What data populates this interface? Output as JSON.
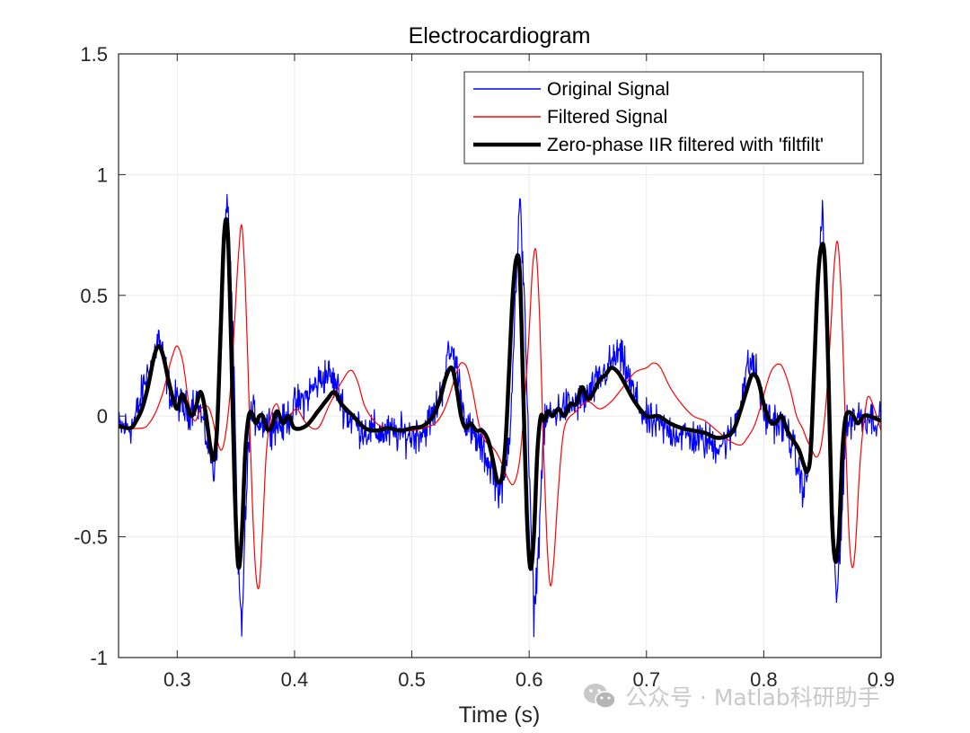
{
  "chart_data": {
    "type": "line",
    "title": "Electrocardiogram",
    "xlabel": "Time (s)",
    "ylabel": "",
    "xlim": [
      0.25,
      0.9
    ],
    "ylim": [
      -1,
      1.5
    ],
    "x_ticks": [
      0.3,
      0.4,
      0.5,
      0.6,
      0.7,
      0.8,
      0.9
    ],
    "x_tick_labels": [
      "0.3",
      "0.4",
      "0.5",
      "0.6",
      "0.7",
      "0.8",
      "0.9"
    ],
    "y_ticks": [
      -1,
      -0.5,
      0,
      0.5,
      1,
      1.5
    ],
    "y_tick_labels": [
      "-1",
      "-0.5",
      "0",
      "0.5",
      "1",
      "1.5"
    ],
    "grid": true,
    "legend_position": "top-right",
    "series": [
      {
        "name": "Original Signal",
        "color": "#0000ff",
        "line_style": "thin",
        "noise_amplitude": 0.055,
        "x": [
          0.25,
          0.262,
          0.268,
          0.272,
          0.276,
          0.28,
          0.284,
          0.288,
          0.292,
          0.296,
          0.3,
          0.305,
          0.31,
          0.316,
          0.32,
          0.324,
          0.328,
          0.331,
          0.334,
          0.337,
          0.34,
          0.343,
          0.346,
          0.349,
          0.352,
          0.355,
          0.358,
          0.362,
          0.366,
          0.37,
          0.38,
          0.39,
          0.4,
          0.41,
          0.42,
          0.428,
          0.436,
          0.445,
          0.46,
          0.48,
          0.5,
          0.51,
          0.52,
          0.526,
          0.53,
          0.534,
          0.538,
          0.544,
          0.55,
          0.558,
          0.564,
          0.569,
          0.574,
          0.579,
          0.584,
          0.588,
          0.592,
          0.596,
          0.6,
          0.604,
          0.608,
          0.612,
          0.616,
          0.62,
          0.63,
          0.64,
          0.65,
          0.66,
          0.67,
          0.676,
          0.682,
          0.69,
          0.7,
          0.71,
          0.72,
          0.74,
          0.76,
          0.77,
          0.775,
          0.78,
          0.785,
          0.79,
          0.795,
          0.8,
          0.81,
          0.82,
          0.825,
          0.83,
          0.834,
          0.838,
          0.842,
          0.846,
          0.85,
          0.854,
          0.858,
          0.862,
          0.866,
          0.87,
          0.875,
          0.88,
          0.89,
          0.9
        ],
        "y": [
          -0.05,
          -0.04,
          0.05,
          0.14,
          0.19,
          0.24,
          0.33,
          0.24,
          0.14,
          0.06,
          0.07,
          0.03,
          0.02,
          0.08,
          0.01,
          -0.07,
          -0.15,
          -0.24,
          -0.1,
          0.25,
          0.65,
          0.92,
          0.55,
          0.05,
          -0.65,
          -0.88,
          -0.45,
          0.0,
          0.0,
          -0.02,
          -0.03,
          -0.04,
          0.04,
          0.08,
          0.14,
          0.18,
          0.12,
          0.0,
          -0.06,
          -0.07,
          -0.08,
          -0.06,
          0.02,
          0.12,
          0.23,
          0.27,
          0.21,
          0.02,
          -0.07,
          -0.12,
          -0.18,
          -0.23,
          -0.3,
          -0.28,
          -0.02,
          0.45,
          0.88,
          0.52,
          -0.25,
          -0.82,
          -0.55,
          -0.08,
          0.0,
          0.01,
          0.04,
          0.05,
          0.08,
          0.15,
          0.22,
          0.26,
          0.2,
          0.08,
          -0.02,
          -0.04,
          -0.06,
          -0.09,
          -0.12,
          -0.1,
          -0.04,
          0.06,
          0.18,
          0.23,
          0.15,
          0.0,
          -0.02,
          -0.06,
          -0.13,
          -0.24,
          -0.3,
          -0.22,
          0.12,
          0.55,
          0.86,
          0.45,
          -0.35,
          -0.78,
          -0.45,
          -0.06,
          0.0,
          0.0,
          0.0,
          -0.02
        ]
      },
      {
        "name": "Filtered Signal",
        "color": "#ff0000",
        "line_style": "thin",
        "x": [
          0.25,
          0.27,
          0.276,
          0.282,
          0.288,
          0.292,
          0.296,
          0.3,
          0.305,
          0.31,
          0.315,
          0.32,
          0.326,
          0.33,
          0.334,
          0.338,
          0.342,
          0.346,
          0.349,
          0.352,
          0.355,
          0.358,
          0.361,
          0.364,
          0.367,
          0.37,
          0.373,
          0.376,
          0.38,
          0.385,
          0.39,
          0.396,
          0.402,
          0.41,
          0.42,
          0.43,
          0.44,
          0.448,
          0.454,
          0.46,
          0.47,
          0.48,
          0.49,
          0.5,
          0.51,
          0.52,
          0.527,
          0.533,
          0.538,
          0.542,
          0.547,
          0.552,
          0.557,
          0.562,
          0.567,
          0.572,
          0.577,
          0.582,
          0.587,
          0.592,
          0.596,
          0.6,
          0.603,
          0.606,
          0.609,
          0.612,
          0.615,
          0.618,
          0.621,
          0.625,
          0.63,
          0.64,
          0.65,
          0.66,
          0.67,
          0.68,
          0.69,
          0.7,
          0.706,
          0.712,
          0.72,
          0.73,
          0.74,
          0.75,
          0.76,
          0.77,
          0.78,
          0.786,
          0.792,
          0.798,
          0.803,
          0.808,
          0.815,
          0.822,
          0.828,
          0.833,
          0.837,
          0.841,
          0.845,
          0.849,
          0.853,
          0.857,
          0.86,
          0.863,
          0.866,
          0.869,
          0.872,
          0.875,
          0.878,
          0.882,
          0.886,
          0.89,
          0.9
        ],
        "y": [
          -0.05,
          -0.05,
          -0.03,
          0.02,
          0.1,
          0.18,
          0.25,
          0.29,
          0.22,
          0.05,
          -0.02,
          0.03,
          0.04,
          -0.01,
          -0.1,
          -0.14,
          -0.05,
          0.15,
          0.4,
          0.65,
          0.79,
          0.55,
          0.1,
          -0.35,
          -0.65,
          -0.7,
          -0.45,
          -0.15,
          0.0,
          0.05,
          -0.02,
          0.0,
          0.03,
          -0.03,
          -0.05,
          0.05,
          0.14,
          0.19,
          0.14,
          0.04,
          -0.03,
          -0.05,
          -0.06,
          -0.06,
          -0.05,
          -0.03,
          0.02,
          0.1,
          0.18,
          0.22,
          0.2,
          0.1,
          -0.03,
          -0.1,
          -0.12,
          -0.15,
          -0.2,
          -0.26,
          -0.28,
          -0.18,
          0.05,
          0.35,
          0.62,
          0.68,
          0.4,
          -0.1,
          -0.5,
          -0.7,
          -0.6,
          -0.3,
          -0.05,
          0.02,
          0.06,
          0.03,
          0.06,
          0.12,
          0.18,
          0.2,
          0.22,
          0.2,
          0.12,
          0.05,
          0.0,
          -0.02,
          -0.06,
          -0.1,
          -0.12,
          -0.09,
          -0.04,
          0.05,
          0.14,
          0.2,
          0.21,
          0.12,
          0.0,
          -0.05,
          -0.1,
          -0.14,
          -0.17,
          -0.12,
          0.05,
          0.35,
          0.62,
          0.72,
          0.5,
          0.05,
          -0.42,
          -0.62,
          -0.55,
          -0.2,
          0.0,
          0.08,
          -0.06
        ]
      },
      {
        "name": "Zero-phase IIR filtered with 'filtfilt'",
        "color": "#000000",
        "line_style": "thick",
        "x": [
          0.25,
          0.26,
          0.265,
          0.27,
          0.275,
          0.28,
          0.284,
          0.288,
          0.292,
          0.296,
          0.3,
          0.304,
          0.308,
          0.312,
          0.316,
          0.32,
          0.324,
          0.328,
          0.331,
          0.334,
          0.337,
          0.34,
          0.343,
          0.346,
          0.349,
          0.352,
          0.355,
          0.358,
          0.361,
          0.364,
          0.367,
          0.37,
          0.373,
          0.376,
          0.38,
          0.385,
          0.39,
          0.395,
          0.4,
          0.41,
          0.42,
          0.428,
          0.434,
          0.44,
          0.45,
          0.46,
          0.47,
          0.48,
          0.49,
          0.5,
          0.51,
          0.518,
          0.524,
          0.529,
          0.534,
          0.538,
          0.542,
          0.546,
          0.55,
          0.555,
          0.56,
          0.565,
          0.569,
          0.573,
          0.577,
          0.58,
          0.583,
          0.586,
          0.589,
          0.592,
          0.595,
          0.598,
          0.601,
          0.604,
          0.607,
          0.61,
          0.613,
          0.616,
          0.62,
          0.625,
          0.63,
          0.635,
          0.64,
          0.645,
          0.65,
          0.655,
          0.66,
          0.665,
          0.67,
          0.676,
          0.682,
          0.69,
          0.7,
          0.71,
          0.72,
          0.73,
          0.74,
          0.75,
          0.76,
          0.77,
          0.775,
          0.78,
          0.785,
          0.79,
          0.795,
          0.8,
          0.805,
          0.81,
          0.815,
          0.82,
          0.825,
          0.83,
          0.834,
          0.837,
          0.84,
          0.843,
          0.846,
          0.849,
          0.852,
          0.855,
          0.858,
          0.861,
          0.864,
          0.867,
          0.87,
          0.875,
          0.88,
          0.885,
          0.89,
          0.9
        ],
        "y": [
          -0.04,
          -0.05,
          -0.02,
          0.03,
          0.12,
          0.24,
          0.29,
          0.25,
          0.16,
          0.08,
          0.03,
          0.09,
          0.05,
          0.0,
          0.04,
          0.1,
          0.02,
          -0.12,
          -0.18,
          -0.05,
          0.35,
          0.75,
          0.77,
          0.3,
          -0.3,
          -0.62,
          -0.5,
          -0.15,
          0.0,
          0.01,
          -0.03,
          0.0,
          0.0,
          -0.05,
          -0.05,
          0.02,
          -0.03,
          0.0,
          -0.05,
          -0.04,
          0.02,
          0.07,
          0.1,
          0.05,
          0.0,
          -0.05,
          -0.06,
          -0.05,
          -0.06,
          -0.05,
          -0.04,
          0.0,
          0.07,
          0.16,
          0.2,
          0.12,
          0.0,
          -0.05,
          -0.03,
          -0.06,
          -0.06,
          -0.1,
          -0.18,
          -0.27,
          -0.25,
          -0.1,
          0.2,
          0.5,
          0.65,
          0.6,
          0.1,
          -0.4,
          -0.63,
          -0.5,
          -0.15,
          0.0,
          -0.02,
          0.02,
          0.0,
          0.03,
          0.0,
          0.05,
          0.05,
          0.12,
          0.07,
          0.1,
          0.15,
          0.17,
          0.2,
          0.18,
          0.13,
          0.06,
          0.0,
          0.0,
          -0.03,
          -0.05,
          -0.06,
          -0.07,
          -0.09,
          -0.08,
          -0.05,
          0.02,
          0.1,
          0.17,
          0.15,
          0.05,
          -0.02,
          -0.03,
          0.0,
          -0.06,
          -0.1,
          -0.14,
          -0.2,
          -0.23,
          -0.15,
          0.2,
          0.55,
          0.7,
          0.65,
          0.2,
          -0.4,
          -0.6,
          -0.5,
          -0.15,
          0.0,
          0.01,
          -0.03,
          0.0,
          0.0,
          -0.02
        ]
      }
    ]
  },
  "watermark": {
    "text": "公众号 · Matlab科研助手",
    "icon": "wechat-icon"
  }
}
